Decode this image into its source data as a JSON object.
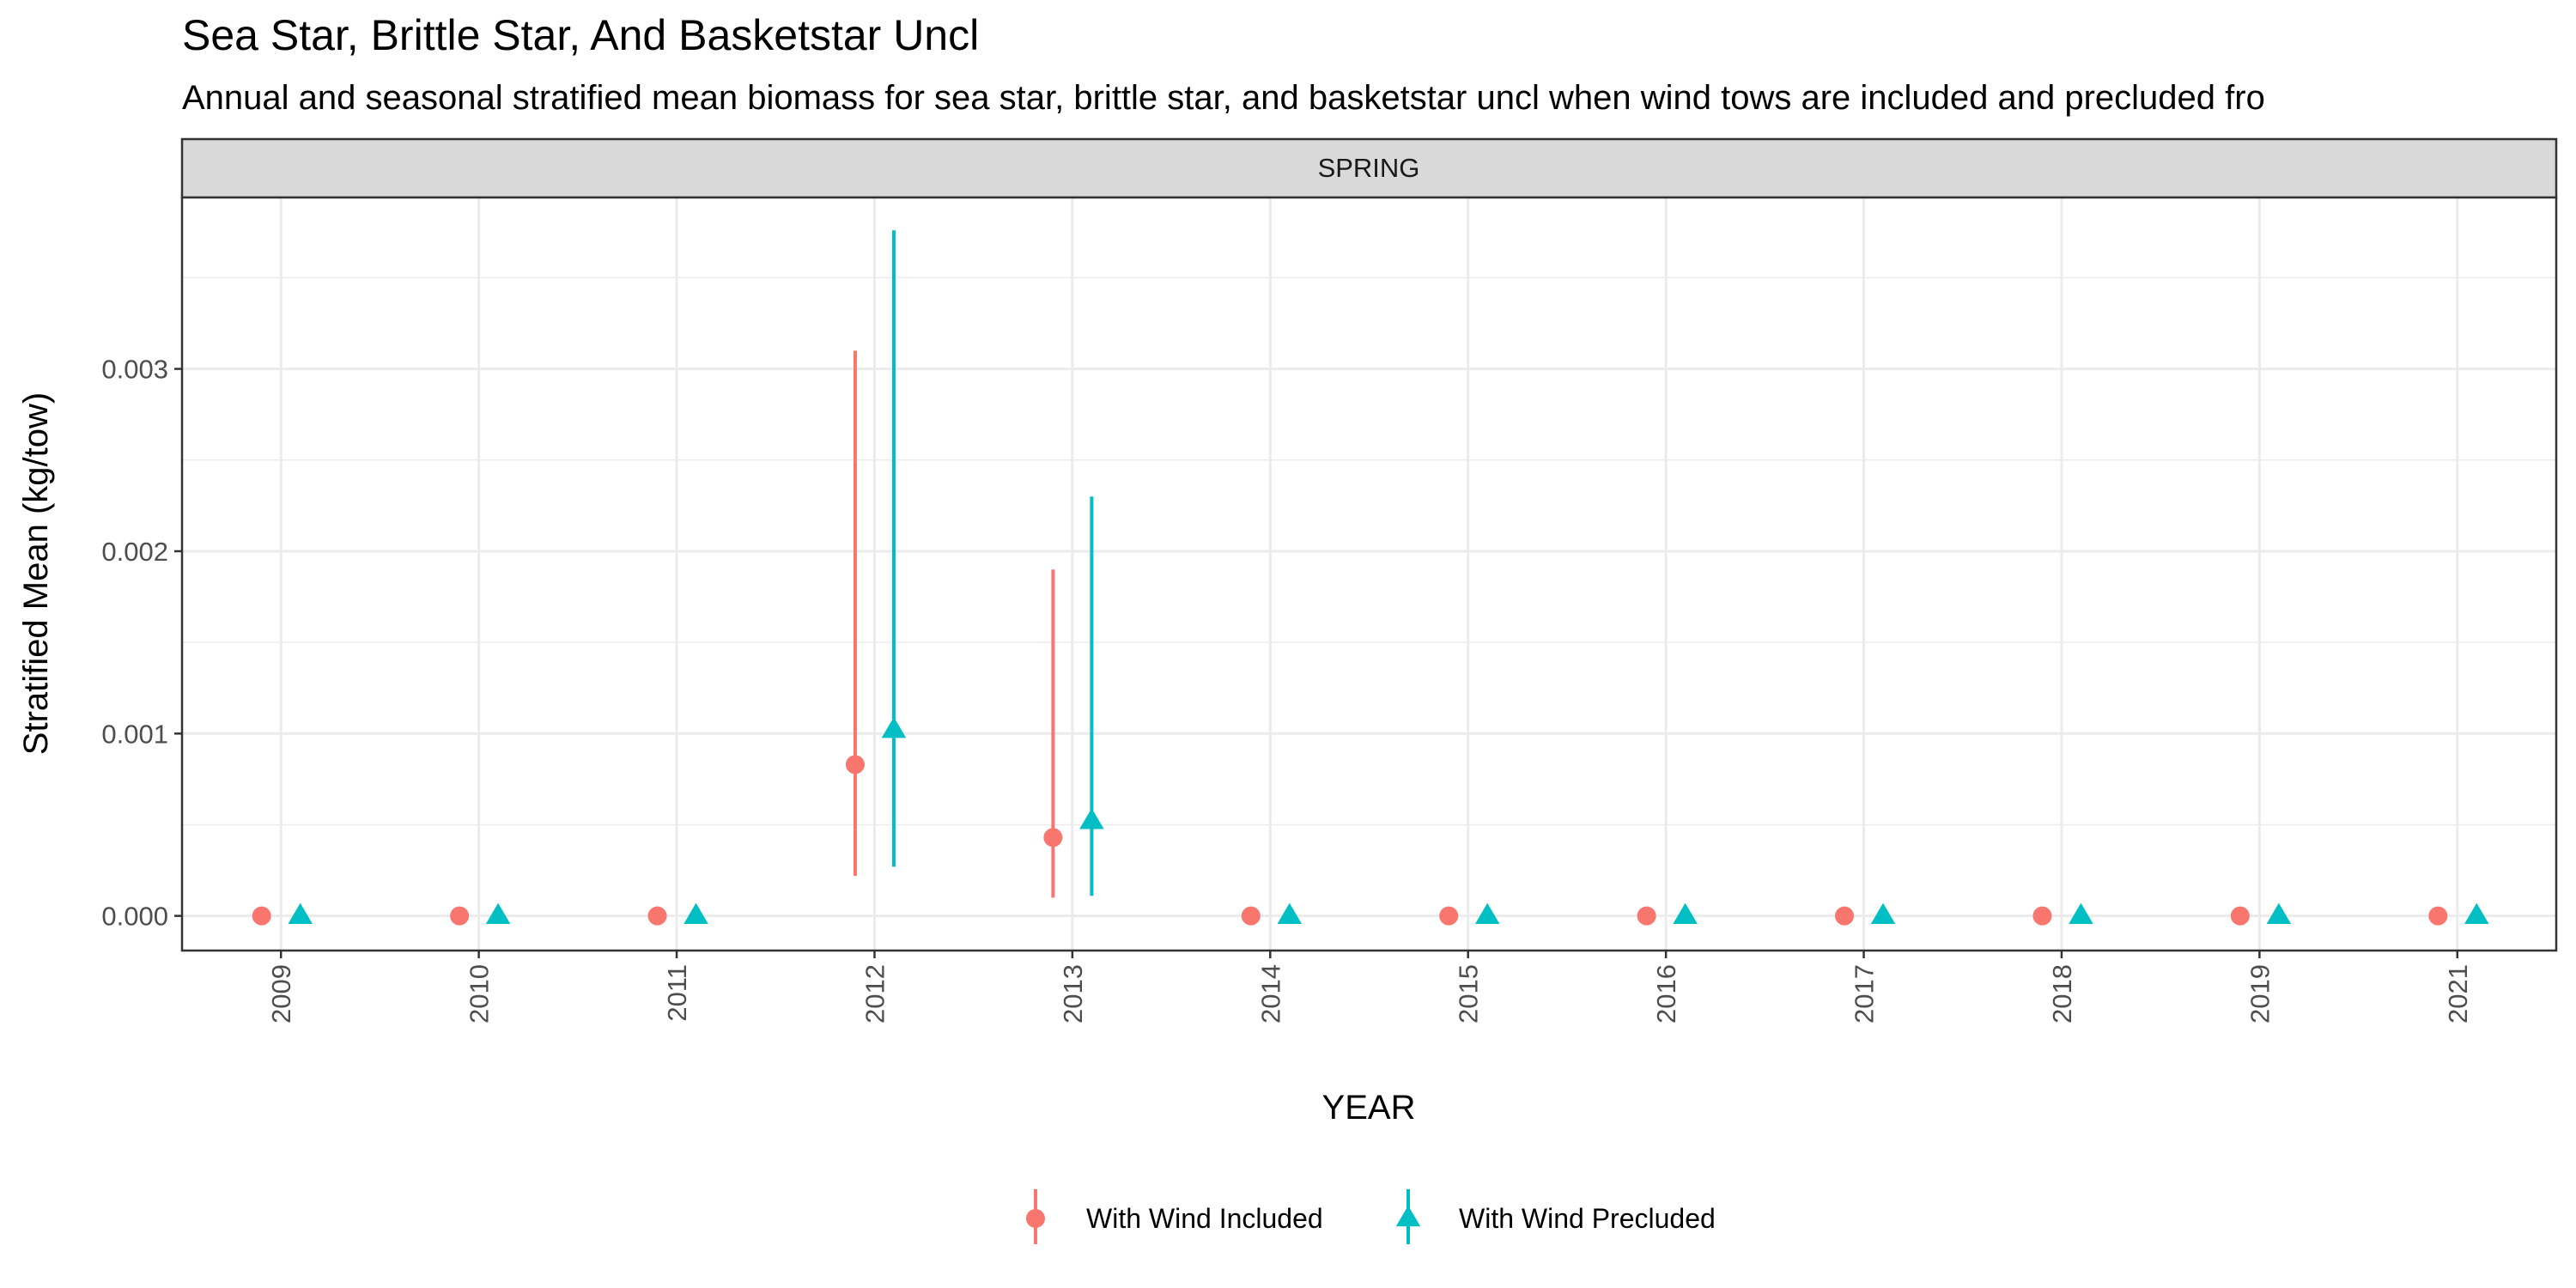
{
  "chart_data": {
    "type": "scatter",
    "title": "Sea Star, Brittle Star, And Basketstar Uncl",
    "subtitle": "Annual and seasonal stratified mean biomass for sea star, brittle star, and basketstar uncl when wind tows are included and precluded fro",
    "facet": "SPRING",
    "xlabel": "YEAR",
    "ylabel": "Stratified Mean (kg/tow)",
    "categories": [
      "2009",
      "2010",
      "2011",
      "2012",
      "2013",
      "2014",
      "2015",
      "2016",
      "2017",
      "2018",
      "2019",
      "2021"
    ],
    "y_ticks": [
      "0.000",
      "0.001",
      "0.002",
      "0.003"
    ],
    "ylim": [
      -0.00019,
      0.00394
    ],
    "grid": true,
    "legend_position": "bottom",
    "series": [
      {
        "name": "With Wind Included",
        "color": "#F8766D",
        "shape": "circle",
        "values": [
          0,
          0,
          0,
          0.00083,
          0.00043,
          0,
          0,
          0,
          0,
          0,
          0,
          0
        ],
        "lower": [
          0,
          0,
          0,
          0.00022,
          0.0001,
          0,
          0,
          0,
          0,
          0,
          0,
          0
        ],
        "upper": [
          0,
          0,
          0,
          0.0031,
          0.0019,
          0,
          0,
          0,
          0,
          0,
          0,
          0
        ]
      },
      {
        "name": "With Wind Precluded",
        "color": "#00BFC4",
        "shape": "triangle",
        "values": [
          0,
          0,
          0,
          0.00102,
          0.00052,
          0,
          0,
          0,
          0,
          0,
          0,
          0
        ],
        "lower": [
          0,
          0,
          0,
          0.00027,
          0.00011,
          0,
          0,
          0,
          0,
          0,
          0,
          0
        ],
        "upper": [
          0,
          0,
          0,
          0.00376,
          0.0023,
          0,
          0,
          0,
          0,
          0,
          0,
          0
        ]
      }
    ]
  }
}
